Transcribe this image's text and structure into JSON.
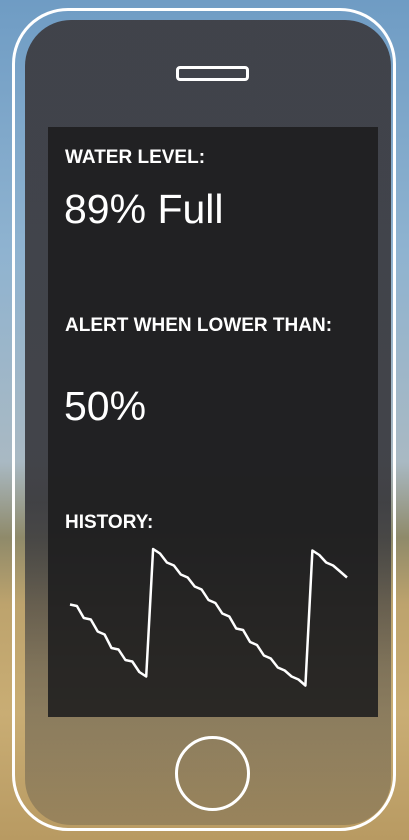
{
  "water_level": {
    "label": "WATER LEVEL:",
    "value": "89% Full"
  },
  "alert": {
    "label": "ALERT WHEN LOWER THAN:",
    "value": "50%"
  },
  "history": {
    "label": "HISTORY:",
    "chart_data": {
      "type": "line",
      "color": "#ffffff",
      "ylim": [
        0,
        100
      ],
      "values": [
        57,
        56,
        48,
        47,
        39,
        37,
        28,
        27,
        20,
        19,
        12,
        9,
        94,
        91,
        85,
        83,
        77,
        75,
        69,
        67,
        60,
        58,
        51,
        49,
        41,
        40,
        32,
        30,
        23,
        21,
        15,
        13,
        9,
        7,
        3,
        93,
        90,
        85,
        83,
        79,
        75
      ]
    }
  }
}
